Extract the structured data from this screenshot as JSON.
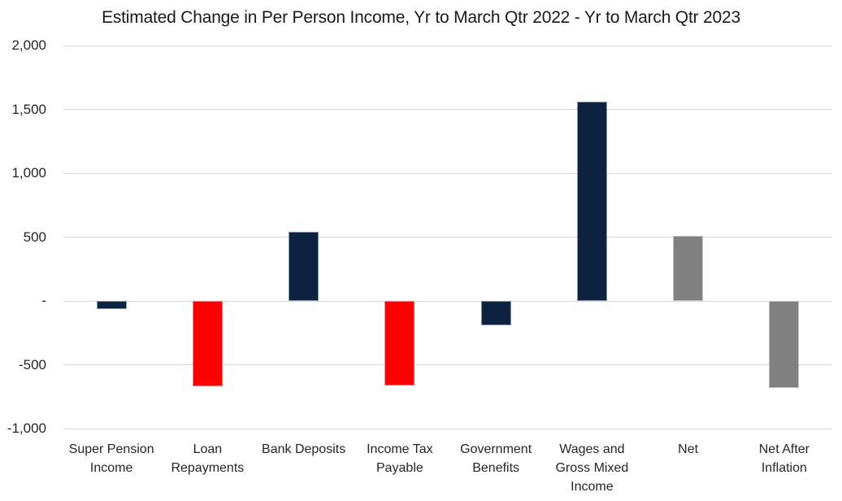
{
  "chart_data": {
    "type": "bar",
    "title": "Estimated Change in Per Person Income, Yr to March Qtr 2022 - Yr to March Qtr 2023",
    "categories": [
      "Super Pension Income",
      "Loan Repayments",
      "Bank Deposits",
      "Income Tax Payable",
      "Government Benefits",
      "Wages and Gross Mixed Income",
      "Net",
      "Net After Inflation"
    ],
    "values": [
      -65,
      -670,
      540,
      -665,
      -190,
      1560,
      510,
      -680
    ],
    "bar_colors": [
      "#0d2240",
      "#ff0000",
      "#0d2240",
      "#ff0000",
      "#0d2240",
      "#0d2240",
      "#808080",
      "#808080"
    ],
    "xlabel": "",
    "ylabel": "",
    "ylim": [
      -1000,
      2000
    ],
    "ytick_interval": 500,
    "ytick_labels": [
      "2,000",
      "1,500",
      "1,000",
      "500",
      "-",
      "-500",
      "-1,000"
    ],
    "grid": true,
    "legend_position": "none",
    "colors": {
      "gridline": "#d9d9d9",
      "axis_text": "#262626",
      "title_text": "#1a1a1a",
      "background": "#ffffff",
      "navy": "#0d2240",
      "red": "#ff0000",
      "gray": "#808080"
    }
  }
}
